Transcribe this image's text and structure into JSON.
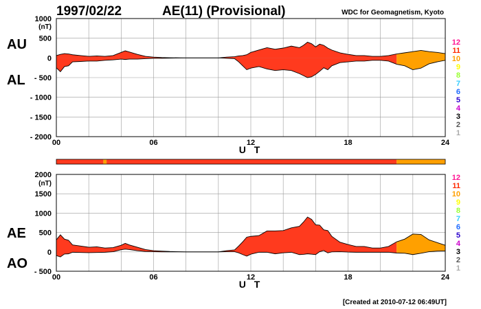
{
  "header": {
    "date": "1997/02/22",
    "title": "AE(11) (Provisional)",
    "source": "WDC for Geomagnetism, Kyoto"
  },
  "footer": {
    "created": "[Created at 2010-07-12 06:49UT]"
  },
  "colors": {
    "provisional": "#ff3a1e",
    "quicklook": "#ffa000",
    "bar_main": "#ff3a1e",
    "bar_other": "#ffa000"
  },
  "levels": [
    {
      "label": "12",
      "color": "#ff1493"
    },
    {
      "label": "11",
      "color": "#ff2a00"
    },
    {
      "label": "10",
      "color": "#ffa000"
    },
    {
      "label": "9",
      "color": "#ffff00"
    },
    {
      "label": "8",
      "color": "#99ff33"
    },
    {
      "label": "7",
      "color": "#33ccff"
    },
    {
      "label": "6",
      "color": "#1e6bff"
    },
    {
      "label": "5",
      "color": "#2b00cc"
    },
    {
      "label": "4",
      "color": "#cc00cc"
    },
    {
      "label": "3",
      "color": "#000000"
    },
    {
      "label": "2",
      "color": "#555555"
    },
    {
      "label": "1",
      "color": "#aaaaaa"
    }
  ],
  "availability_bar": {
    "segments": [
      {
        "start": 0,
        "end": 2.9,
        "level": "11"
      },
      {
        "start": 2.9,
        "end": 3.1,
        "level": "10"
      },
      {
        "start": 3.1,
        "end": 21,
        "level": "11"
      },
      {
        "start": 21,
        "end": 24,
        "level": "10"
      }
    ]
  },
  "chart_data": [
    {
      "type": "area",
      "name": "top-panel",
      "xlabel": "U T",
      "ylabel_top": "AU",
      "ylabel_bottom": "AL",
      "unit": "(nT)",
      "xlim": [
        0,
        24
      ],
      "ylim": [
        -2000,
        1000
      ],
      "xticks": [
        "00",
        "06",
        "12",
        "18",
        "24"
      ],
      "yticks": [
        "1000",
        "500",
        "0",
        "- 500",
        "- 1000",
        "- 1500",
        "- 2000"
      ],
      "quicklook_from": 21,
      "x": [
        0,
        0.25,
        0.5,
        0.75,
        1,
        1.5,
        2,
        2.5,
        3,
        3.5,
        4,
        4.25,
        4.5,
        5,
        5.5,
        6,
        6.5,
        7,
        8,
        9,
        10,
        10.5,
        11,
        11.25,
        11.5,
        11.75,
        12,
        12.5,
        13,
        13.5,
        14,
        14.5,
        15,
        15.25,
        15.5,
        15.75,
        16,
        16.25,
        16.5,
        16.75,
        17,
        17.5,
        18,
        18.5,
        19,
        19.5,
        20,
        20.5,
        21,
        21.5,
        22,
        22.5,
        23,
        23.5,
        24
      ],
      "au": [
        60,
        90,
        110,
        100,
        80,
        60,
        40,
        50,
        40,
        60,
        140,
        180,
        150,
        90,
        40,
        20,
        10,
        5,
        0,
        0,
        0,
        20,
        30,
        50,
        60,
        80,
        140,
        200,
        260,
        220,
        250,
        300,
        260,
        320,
        400,
        360,
        280,
        350,
        320,
        250,
        200,
        130,
        90,
        60,
        60,
        40,
        40,
        60,
        100,
        130,
        160,
        190,
        160,
        140,
        110
      ],
      "al": [
        -250,
        -350,
        -220,
        -200,
        -100,
        -90,
        -80,
        -80,
        -60,
        -50,
        -30,
        -40,
        -30,
        -30,
        -20,
        -10,
        -10,
        -5,
        0,
        0,
        0,
        -10,
        -20,
        -100,
        -200,
        -300,
        -260,
        -220,
        -280,
        -320,
        -300,
        -320,
        -400,
        -450,
        -500,
        -480,
        -420,
        -340,
        -250,
        -300,
        -200,
        -120,
        -100,
        -80,
        -80,
        -60,
        -60,
        -80,
        -160,
        -200,
        -300,
        -260,
        -150,
        -100,
        -60
      ]
    },
    {
      "type": "area",
      "name": "bottom-panel",
      "xlabel": "U T",
      "ylabel_top": "AE",
      "ylabel_bottom": "AO",
      "unit": "(nT)",
      "xlim": [
        0,
        24
      ],
      "ylim": [
        -500,
        2000
      ],
      "xticks": [
        "00",
        "06",
        "12",
        "18",
        "24"
      ],
      "yticks": [
        "2000",
        "1500",
        "1000",
        "500",
        "0",
        "- 500"
      ],
      "quicklook_from": 21,
      "x": [
        0,
        0.25,
        0.5,
        0.75,
        1,
        1.5,
        2,
        2.5,
        3,
        3.5,
        4,
        4.25,
        4.5,
        5,
        5.5,
        6,
        6.5,
        7,
        8,
        9,
        10,
        10.5,
        11,
        11.25,
        11.5,
        11.75,
        12,
        12.5,
        13,
        13.5,
        14,
        14.5,
        15,
        15.25,
        15.5,
        15.75,
        16,
        16.25,
        16.5,
        16.75,
        17,
        17.5,
        18,
        18.5,
        19,
        19.5,
        20,
        20.5,
        21,
        21.5,
        22,
        22.5,
        23,
        23.5,
        24
      ],
      "ae": [
        310,
        440,
        330,
        300,
        180,
        150,
        120,
        130,
        100,
        110,
        170,
        220,
        180,
        120,
        60,
        30,
        20,
        10,
        0,
        0,
        0,
        30,
        50,
        150,
        260,
        380,
        400,
        420,
        540,
        540,
        550,
        620,
        660,
        770,
        900,
        840,
        700,
        690,
        570,
        550,
        400,
        250,
        190,
        140,
        140,
        100,
        100,
        140,
        260,
        330,
        460,
        450,
        310,
        240,
        170
      ],
      "ao": [
        -95,
        -130,
        -55,
        -50,
        -10,
        -15,
        -20,
        -15,
        -10,
        5,
        55,
        70,
        60,
        30,
        10,
        5,
        0,
        0,
        0,
        0,
        0,
        5,
        5,
        -25,
        -70,
        -110,
        -60,
        -10,
        -10,
        -50,
        -25,
        -10,
        -70,
        -65,
        -50,
        -60,
        -70,
        5,
        35,
        -25,
        0,
        5,
        -5,
        -10,
        -10,
        -10,
        -10,
        -10,
        -30,
        -35,
        -70,
        -35,
        5,
        20,
        25
      ]
    }
  ]
}
